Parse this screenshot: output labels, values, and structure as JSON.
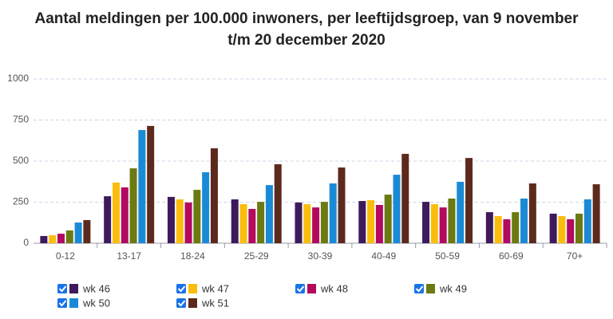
{
  "chart_data": {
    "type": "bar",
    "title": "Aantal meldingen per 100.000 inwoners, per leeftijdsgroep, van 9 november t/m 20 december 2020",
    "categories": [
      "0-12",
      "13-17",
      "18-24",
      "25-29",
      "30-39",
      "40-49",
      "50-59",
      "60-69",
      "70+"
    ],
    "series": [
      {
        "name": "wk 46",
        "color": "#3d1a5b",
        "values": [
          44,
          286,
          282,
          267,
          248,
          257,
          252,
          189,
          180
        ]
      },
      {
        "name": "wk 47",
        "color": "#fbbd0d",
        "values": [
          49,
          369,
          267,
          238,
          238,
          262,
          238,
          165,
          165
        ]
      },
      {
        "name": "wk 48",
        "color": "#b3095f",
        "values": [
          58,
          340,
          248,
          209,
          218,
          233,
          218,
          146,
          146
        ]
      },
      {
        "name": "wk 49",
        "color": "#6b7a12",
        "values": [
          78,
          456,
          325,
          252,
          252,
          296,
          272,
          189,
          180
        ]
      },
      {
        "name": "wk 50",
        "color": "#1b8ad6",
        "values": [
          126,
          689,
          432,
          354,
          364,
          417,
          374,
          272,
          267
        ]
      },
      {
        "name": "wk 51",
        "color": "#5c2a1d",
        "values": [
          141,
          714,
          578,
          481,
          461,
          544,
          519,
          364,
          359
        ]
      }
    ],
    "ylim": [
      0,
      1000
    ],
    "yticks": [
      0,
      250,
      500,
      750,
      1000
    ],
    "grid": true
  }
}
